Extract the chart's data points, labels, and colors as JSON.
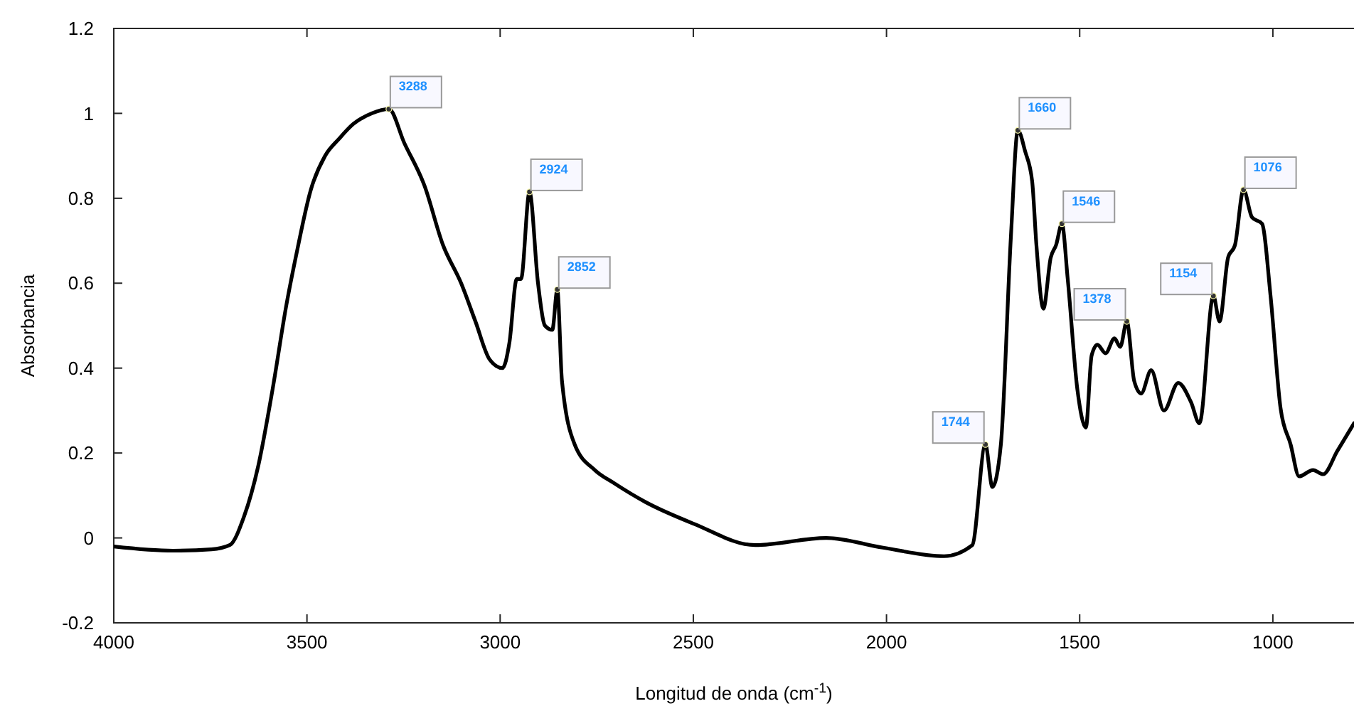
{
  "chart_data": {
    "type": "line",
    "xlabel": "Longitud de onda (cm$^{-1}$)",
    "ylabel": "Absorbancia",
    "x": [
      4000,
      3847,
      3747,
      3700,
      3663,
      3626,
      3589,
      3553,
      3527,
      3490,
      3453,
      3417,
      3380,
      3332,
      3288,
      3248,
      3196,
      3148,
      3101,
      3064,
      3027,
      2994,
      2976,
      2957,
      2946,
      2924,
      2902,
      2884,
      2865,
      2852,
      2840,
      2807,
      2755,
      2707,
      2623,
      2498,
      2340,
      2156,
      2009,
      1851,
      1778,
      1744,
      1726,
      1704,
      1678,
      1660,
      1641,
      1623,
      1612,
      1594,
      1575,
      1561,
      1546,
      1531,
      1506,
      1484,
      1469,
      1454,
      1433,
      1410,
      1395,
      1378,
      1359,
      1341,
      1315,
      1282,
      1245,
      1212,
      1190,
      1154,
      1138,
      1116,
      1098,
      1076,
      1054,
      1028,
      1006,
      980,
      954,
      932,
      896,
      870,
      833,
      790
    ],
    "series": [
      {
        "color": "#000000",
        "values": [
          -0.02,
          -0.03,
          -0.027,
          -0.017,
          0.05,
          0.17,
          0.35,
          0.55,
          0.67,
          0.82,
          0.9,
          0.94,
          0.975,
          1.0,
          1.01,
          0.93,
          0.83,
          0.69,
          0.6,
          0.51,
          0.42,
          0.4,
          0.46,
          0.61,
          0.61,
          0.815,
          0.6,
          0.5,
          0.49,
          0.585,
          0.37,
          0.22,
          0.16,
          0.13,
          0.084,
          0.033,
          -0.017,
          0.0,
          -0.023,
          -0.043,
          -0.017,
          0.22,
          0.12,
          0.22,
          0.71,
          0.96,
          0.91,
          0.84,
          0.69,
          0.54,
          0.66,
          0.69,
          0.74,
          0.61,
          0.35,
          0.26,
          0.43,
          0.455,
          0.435,
          0.47,
          0.45,
          0.51,
          0.37,
          0.34,
          0.395,
          0.3,
          0.365,
          0.32,
          0.27,
          0.57,
          0.51,
          0.66,
          0.69,
          0.82,
          0.755,
          0.74,
          0.57,
          0.305,
          0.22,
          0.145,
          0.16,
          0.15,
          0.205,
          0.27
        ]
      }
    ],
    "xlim": [
      4000,
      790
    ],
    "ylim": [
      -0.2,
      1.2
    ],
    "xticks": [
      4000,
      3500,
      3000,
      2500,
      2000,
      1500,
      1000
    ],
    "yticks": [
      -0.2,
      0,
      0.2,
      0.4,
      0.6,
      0.8,
      1,
      1.2
    ],
    "grid": false,
    "marker": "none",
    "line_style": "solid",
    "annotations": [
      {
        "text": "3288",
        "x": 3288,
        "y": 1.01
      },
      {
        "text": "2924",
        "x": 2924,
        "y": 0.815
      },
      {
        "text": "2852",
        "x": 2852,
        "y": 0.585
      },
      {
        "text": "1744",
        "x": 1744,
        "y": 0.22
      },
      {
        "text": "1660",
        "x": 1660,
        "y": 0.96
      },
      {
        "text": "1546",
        "x": 1546,
        "y": 0.74
      },
      {
        "text": "1378",
        "x": 1378,
        "y": 0.51
      },
      {
        "text": "1154",
        "x": 1154,
        "y": 0.57
      },
      {
        "text": "1076",
        "x": 1076,
        "y": 0.82
      }
    ]
  }
}
